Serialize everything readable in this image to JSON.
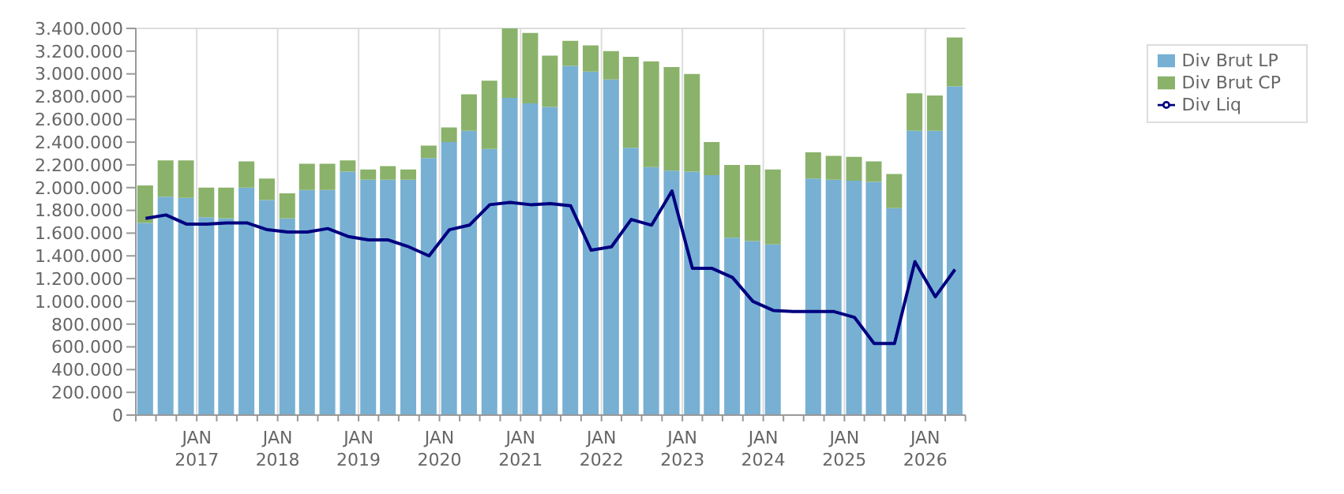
{
  "chart_data": {
    "type": "bar",
    "stacked": true,
    "x": [
      "2016-05-15",
      "2016-08-15",
      "2016-11-15",
      "2017-02-15",
      "2017-05-15",
      "2017-08-15",
      "2017-11-15",
      "2018-02-15",
      "2018-05-15",
      "2018-08-15",
      "2018-11-15",
      "2019-02-15",
      "2019-05-15",
      "2019-08-15",
      "2019-11-15",
      "2020-02-15",
      "2020-05-15",
      "2020-08-15",
      "2020-11-15",
      "2021-02-15",
      "2021-05-15",
      "2021-08-15",
      "2021-11-15",
      "2022-02-15",
      "2022-05-15",
      "2022-08-15",
      "2022-11-15",
      "2023-02-15",
      "2023-05-15",
      "2023-08-15",
      "2023-11-15",
      "2024-02-15",
      "2024-05-15",
      "2024-08-15",
      "2024-11-15",
      "2025-02-15",
      "2025-05-15",
      "2025-08-15",
      "2025-11-15",
      "2026-02-15",
      "2026-05-15"
    ],
    "series": [
      {
        "name": "Div Brut LP",
        "color": "#77b0d3",
        "values": [
          1690000,
          1920000,
          1910000,
          1740000,
          1730000,
          2000000,
          1890000,
          1730000,
          1980000,
          1980000,
          2140000,
          2070000,
          2070000,
          2070000,
          2260000,
          2400000,
          2500000,
          2340000,
          2790000,
          2740000,
          2710000,
          3070000,
          3020000,
          2950000,
          2350000,
          2180000,
          2150000,
          2140000,
          2110000,
          1560000,
          1530000,
          1500000,
          null,
          2080000,
          2070000,
          2060000,
          2050000,
          1820000,
          2500000,
          2500000,
          2890000
        ]
      },
      {
        "name": "Div Brut CP",
        "color": "#8ab26a",
        "values": [
          330000,
          320000,
          330000,
          260000,
          270000,
          230000,
          190000,
          220000,
          230000,
          230000,
          100000,
          90000,
          120000,
          90000,
          110000,
          130000,
          320000,
          600000,
          610000,
          620000,
          450000,
          220000,
          230000,
          250000,
          800000,
          930000,
          910000,
          860000,
          290000,
          640000,
          670000,
          660000,
          null,
          230000,
          210000,
          210000,
          180000,
          300000,
          330000,
          310000,
          430000
        ]
      },
      {
        "name": "Div Liq",
        "type": "line",
        "color": "#000080",
        "values": [
          1730000,
          1760000,
          1680000,
          1680000,
          1690000,
          1690000,
          1630000,
          1610000,
          1610000,
          1640000,
          1570000,
          1540000,
          1540000,
          1480000,
          1400000,
          1630000,
          1670000,
          1850000,
          1870000,
          1850000,
          1860000,
          1840000,
          1450000,
          1480000,
          1720000,
          1670000,
          1970000,
          1290000,
          1290000,
          1210000,
          1000000,
          920000,
          910000,
          910000,
          910000,
          860000,
          630000,
          630000,
          1350000,
          1040000,
          1280000
        ]
      }
    ],
    "xlim": [
      "2016-04-01",
      "2026-07-01"
    ],
    "xticks": [
      {
        "value": "2016-04-01",
        "label": null
      },
      {
        "value": "2016-07-01",
        "label": null
      },
      {
        "value": "2016-10-01",
        "label": null
      },
      {
        "value": "2017-01-01",
        "label": "JAN\n2017"
      },
      {
        "value": "2017-04-01",
        "label": null
      },
      {
        "value": "2017-07-01",
        "label": null
      },
      {
        "value": "2017-10-01",
        "label": null
      },
      {
        "value": "2018-01-01",
        "label": "JAN\n2018"
      },
      {
        "value": "2018-04-01",
        "label": null
      },
      {
        "value": "2018-07-01",
        "label": null
      },
      {
        "value": "2018-10-01",
        "label": null
      },
      {
        "value": "2019-01-01",
        "label": "JAN\n2019"
      },
      {
        "value": "2019-04-01",
        "label": null
      },
      {
        "value": "2019-07-01",
        "label": null
      },
      {
        "value": "2019-10-01",
        "label": null
      },
      {
        "value": "2020-01-01",
        "label": "JAN\n2020"
      },
      {
        "value": "2020-04-01",
        "label": null
      },
      {
        "value": "2020-07-01",
        "label": null
      },
      {
        "value": "2020-10-01",
        "label": null
      },
      {
        "value": "2021-01-01",
        "label": "JAN\n2021"
      },
      {
        "value": "2021-04-01",
        "label": null
      },
      {
        "value": "2021-07-01",
        "label": null
      },
      {
        "value": "2021-10-01",
        "label": null
      },
      {
        "value": "2022-01-01",
        "label": "JAN\n2022"
      },
      {
        "value": "2022-04-01",
        "label": null
      },
      {
        "value": "2022-07-01",
        "label": null
      },
      {
        "value": "2022-10-01",
        "label": null
      },
      {
        "value": "2023-01-01",
        "label": "JAN\n2023"
      },
      {
        "value": "2023-04-01",
        "label": null
      },
      {
        "value": "2023-07-01",
        "label": null
      },
      {
        "value": "2023-10-01",
        "label": null
      },
      {
        "value": "2024-01-01",
        "label": "JAN\n2024"
      },
      {
        "value": "2024-04-01",
        "label": null
      },
      {
        "value": "2024-07-01",
        "label": null
      },
      {
        "value": "2024-10-01",
        "label": null
      },
      {
        "value": "2025-01-01",
        "label": "JAN\n2025"
      },
      {
        "value": "2025-04-01",
        "label": null
      },
      {
        "value": "2025-07-01",
        "label": null
      },
      {
        "value": "2025-10-01",
        "label": null
      },
      {
        "value": "2026-01-01",
        "label": "JAN\n2026"
      },
      {
        "value": "2026-04-01",
        "label": null
      },
      {
        "value": "2026-07-01",
        "label": null
      }
    ],
    "ylim": [
      0,
      3400000
    ],
    "yticks": [
      {
        "value": 0,
        "label": "0"
      },
      {
        "value": 200000,
        "label": "200.000"
      },
      {
        "value": 400000,
        "label": "400.000"
      },
      {
        "value": 600000,
        "label": "600.000"
      },
      {
        "value": 800000,
        "label": "800.000"
      },
      {
        "value": 1000000,
        "label": "1.000.000"
      },
      {
        "value": 1200000,
        "label": "1.200.000"
      },
      {
        "value": 1400000,
        "label": "1.400.000"
      },
      {
        "value": 1600000,
        "label": "1.600.000"
      },
      {
        "value": 1800000,
        "label": "1.800.000"
      },
      {
        "value": 2000000,
        "label": "2.000.000"
      },
      {
        "value": 2200000,
        "label": "2.200.000"
      },
      {
        "value": 2400000,
        "label": "2.400.000"
      },
      {
        "value": 2600000,
        "label": "2.600.000"
      },
      {
        "value": 2800000,
        "label": "2.800.000"
      },
      {
        "value": 3000000,
        "label": "3.000.000"
      },
      {
        "value": 3200000,
        "label": "3.200.000"
      },
      {
        "value": 3400000,
        "label": "3.400.000"
      }
    ],
    "grid": true,
    "legend": "top right",
    "marker": "none",
    "line_style": "solid"
  }
}
